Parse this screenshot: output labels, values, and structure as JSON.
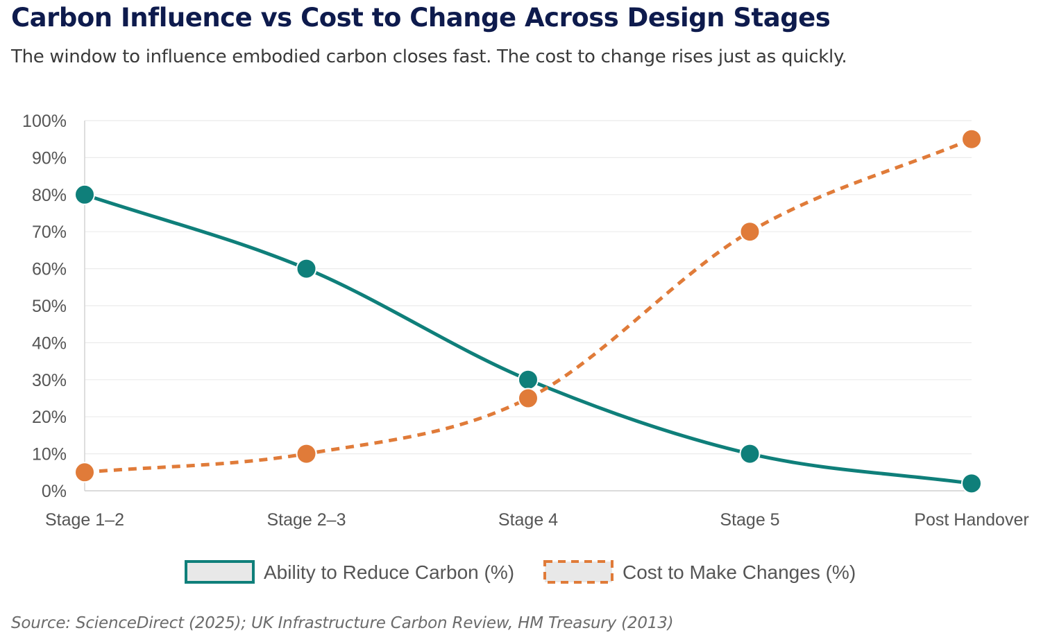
{
  "header": {
    "title": "Carbon Influence vs Cost to Change Across Design Stages",
    "subtitle": "The window to influence embodied carbon closes fast. The cost to change rises just as quickly."
  },
  "footer": {
    "source": "Source: ScienceDirect (2025); UK Infrastructure Carbon Review, HM Treasury (2013)"
  },
  "chart_data": {
    "type": "line",
    "categories": [
      "Stage 1–2",
      "Stage 2–3",
      "Stage 4",
      "Stage 5",
      "Post Handover"
    ],
    "ylim": [
      0,
      100
    ],
    "yticks": [
      0,
      10,
      20,
      30,
      40,
      50,
      60,
      70,
      80,
      90,
      100
    ],
    "ytick_suffix": "%",
    "grid": true,
    "legend_position": "bottom",
    "series": [
      {
        "name": "Ability to Reduce Carbon (%)",
        "values": [
          80,
          60,
          30,
          10,
          2
        ],
        "color": "#0f7f7a",
        "style": "solid"
      },
      {
        "name": "Cost to Make Changes (%)",
        "values": [
          5,
          10,
          25,
          70,
          95
        ],
        "color": "#e07b39",
        "style": "dashed"
      }
    ]
  }
}
